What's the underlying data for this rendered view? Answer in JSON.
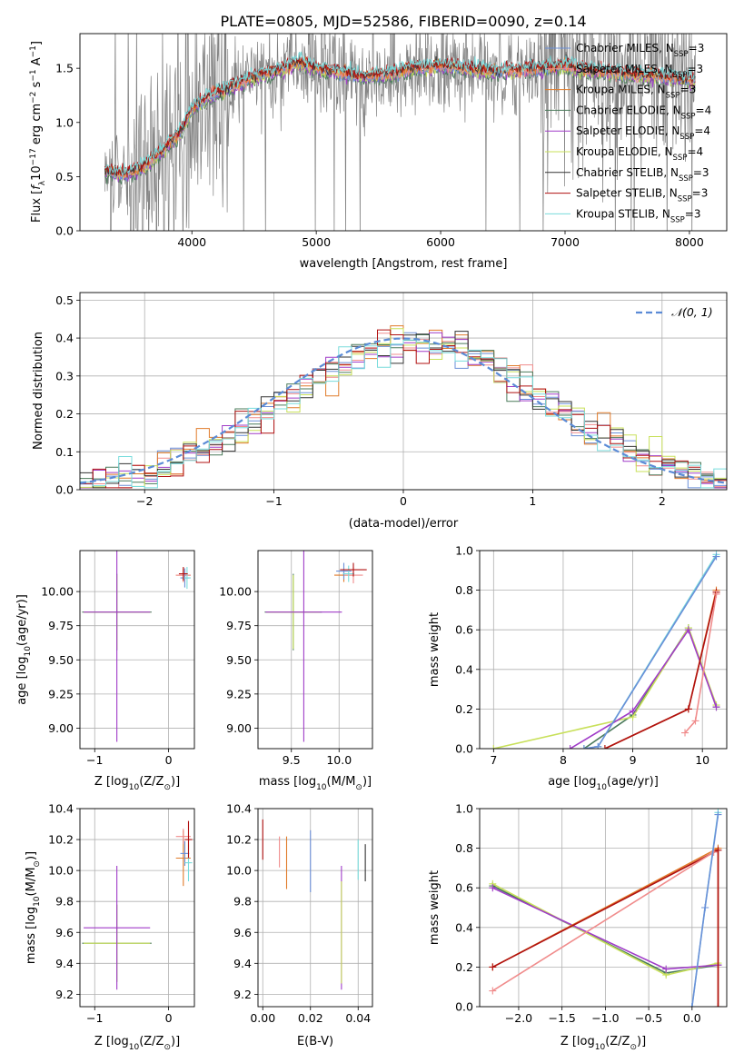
{
  "figure_title": "PLATE=0805, MJD=52586, FIBERID=0090, z=0.14",
  "colors": {
    "chabrier_miles": "#6a8fd8",
    "salpeter_miles": "#f08c8c",
    "kroupa_miles": "#e07b2a",
    "chabrier_elodie": "#4a7a5a",
    "salpeter_elodie": "#a03cc8",
    "kroupa_elodie": "#c8e05a",
    "chabrier_stelib": "#333333",
    "salpeter_stelib": "#b01010",
    "kroupa_stelib": "#78dcdc",
    "data": "#808080",
    "normal_curve": "#5b8bd6"
  },
  "chart_data": [
    {
      "type": "line",
      "id": "spectrum",
      "xlabel": "wavelength [Angstrom, rest frame]",
      "ylabel_parts": [
        "Flux [",
        "f",
        "λ",
        "10",
        "−17",
        " erg cm",
        "−2",
        " s",
        "−1",
        " A",
        "−1",
        "]"
      ],
      "xlim": [
        3100,
        8300
      ],
      "ylim": [
        0,
        1.82
      ],
      "xticks": [
        4000,
        5000,
        6000,
        7000,
        8000
      ],
      "yticks": [
        0.0,
        0.5,
        1.0,
        1.5
      ],
      "legend_placement": "top-right",
      "legend": [
        {
          "main": "Chabrier MILES, N",
          "sub": "SSP",
          "tail": "=3",
          "color_key": "chabrier_miles"
        },
        {
          "main": "Salpeter MILES, N",
          "sub": "SSP",
          "tail": "=3",
          "color_key": "salpeter_miles"
        },
        {
          "main": "Kroupa MILES, N",
          "sub": "SSP",
          "tail": "=3",
          "color_key": "kroupa_miles"
        },
        {
          "main": "Chabrier ELODIE, N",
          "sub": "SSP",
          "tail": "=4",
          "color_key": "chabrier_elodie"
        },
        {
          "main": "Salpeter ELODIE, N",
          "sub": "SSP",
          "tail": "=4",
          "color_key": "salpeter_elodie"
        },
        {
          "main": "Kroupa ELODIE, N",
          "sub": "SSP",
          "tail": "=4",
          "color_key": "kroupa_elodie"
        },
        {
          "main": "Chabrier STELIB, N",
          "sub": "SSP",
          "tail": "=3",
          "color_key": "chabrier_stelib"
        },
        {
          "main": "Salpeter STELIB, N",
          "sub": "SSP",
          "tail": "=3",
          "color_key": "salpeter_stelib"
        },
        {
          "main": "Kroupa STELIB, N",
          "sub": "SSP",
          "tail": "=3",
          "color_key": "kroupa_stelib"
        }
      ],
      "continuum": {
        "x": [
          3300,
          3450,
          3600,
          3750,
          3900,
          4000,
          4150,
          4300,
          4500,
          4700,
          4850,
          5000,
          5200,
          5400,
          5600,
          5800,
          6000,
          6200,
          6400,
          6600,
          6800,
          7000,
          7200,
          7400,
          7600,
          7800,
          8050
        ],
        "y": [
          0.55,
          0.52,
          0.58,
          0.72,
          0.9,
          1.12,
          1.25,
          1.32,
          1.42,
          1.48,
          1.55,
          1.5,
          1.46,
          1.42,
          1.45,
          1.5,
          1.52,
          1.5,
          1.47,
          1.48,
          1.5,
          1.52,
          1.48,
          1.46,
          1.44,
          1.42,
          1.38
        ]
      }
    },
    {
      "type": "bar",
      "id": "residual_hist",
      "xlabel": "(data-model)/error",
      "ylabel": "Normed distribution",
      "xlim": [
        -2.5,
        2.5
      ],
      "ylim": [
        0,
        0.52
      ],
      "xticks": [
        -2,
        -1,
        0,
        1,
        2
      ],
      "yticks": [
        0.0,
        0.1,
        0.2,
        0.3,
        0.4,
        0.5
      ],
      "grid": true,
      "legend_placement": "top-right",
      "curve_label": "𝒩(0, 1)",
      "bin_width": 0.1,
      "bin_start": -2.5
    },
    {
      "type": "scatter",
      "id": "age_vs_z",
      "xlabel_parts": [
        "Z [log",
        "10",
        "(Z/Z",
        "⊙",
        ")]"
      ],
      "ylabel_parts": [
        "age  [log",
        "10",
        "(age/yr)]"
      ],
      "xlim": [
        -1.2,
        0.35
      ],
      "ylim": [
        8.85,
        10.3
      ],
      "xticks": [
        -1,
        0
      ],
      "yticks": [
        9.0,
        9.25,
        9.5,
        9.75,
        10.0
      ],
      "grid": true,
      "points": [
        {
          "x": -0.7,
          "y": 9.85,
          "xerr": 0.47,
          "yerr": 0.28,
          "color_key": "chabrier_elodie"
        },
        {
          "x": -0.7,
          "y": 9.85,
          "xerr": 0.45,
          "yerr": 0.27,
          "color_key": "kroupa_elodie"
        },
        {
          "x": -0.7,
          "y": 9.85,
          "xerr": 0.45,
          "yerr": 0.95,
          "color_key": "salpeter_elodie"
        },
        {
          "x": 0.2,
          "y": 10.12,
          "xerr": 0.1,
          "yerr": 0.05,
          "color_key": "kroupa_miles"
        },
        {
          "x": 0.2,
          "y": 10.12,
          "xerr": 0.1,
          "yerr": 0.05,
          "color_key": "salpeter_miles"
        },
        {
          "x": 0.22,
          "y": 10.1,
          "xerr": 0.06,
          "yerr": 0.07,
          "color_key": "chabrier_miles"
        },
        {
          "x": 0.25,
          "y": 10.1,
          "xerr": 0.05,
          "yerr": 0.08,
          "color_key": "kroupa_stelib"
        },
        {
          "x": 0.2,
          "y": 10.13,
          "xerr": 0.06,
          "yerr": 0.05,
          "color_key": "salpeter_stelib"
        }
      ]
    },
    {
      "type": "scatter",
      "id": "age_vs_mass",
      "xlabel_parts": [
        "mass [log",
        "10",
        "(M/M",
        "⊙",
        ")]"
      ],
      "xlim": [
        9.15,
        10.35
      ],
      "ylim": [
        8.85,
        10.3
      ],
      "xticks": [
        9.5,
        10.0
      ],
      "yticks": [
        9.0,
        9.25,
        9.5,
        9.75,
        10.0
      ],
      "grid": true,
      "points": [
        {
          "x": 9.52,
          "y": 9.85,
          "xerr": 0.3,
          "yerr": 0.28,
          "color_key": "chabrier_elodie"
        },
        {
          "x": 9.52,
          "y": 9.85,
          "xerr": 0.28,
          "yerr": 0.27,
          "color_key": "kroupa_elodie"
        },
        {
          "x": 9.63,
          "y": 9.85,
          "xerr": 0.4,
          "yerr": 0.95,
          "color_key": "salpeter_elodie"
        },
        {
          "x": 10.05,
          "y": 10.12,
          "xerr": 0.1,
          "yerr": 0.05,
          "color_key": "kroupa_miles"
        },
        {
          "x": 10.15,
          "y": 10.12,
          "xerr": 0.1,
          "yerr": 0.06,
          "color_key": "salpeter_miles"
        },
        {
          "x": 10.05,
          "y": 10.15,
          "xerr": 0.08,
          "yerr": 0.06,
          "color_key": "chabrier_miles"
        },
        {
          "x": 10.1,
          "y": 10.13,
          "xerr": 0.06,
          "yerr": 0.06,
          "color_key": "kroupa_stelib"
        },
        {
          "x": 10.15,
          "y": 10.16,
          "xerr": 0.14,
          "yerr": 0.05,
          "color_key": "salpeter_stelib"
        }
      ]
    },
    {
      "type": "line",
      "id": "weight_vs_age",
      "xlabel_parts": [
        "age  [log",
        "10",
        "(age/yr)]"
      ],
      "ylabel": "mass weight",
      "xlim": [
        6.8,
        10.35
      ],
      "ylim": [
        0,
        1.0
      ],
      "xticks": [
        7,
        8,
        9,
        10
      ],
      "yticks": [
        0.0,
        0.2,
        0.4,
        0.6,
        0.8,
        1.0
      ],
      "grid": true,
      "series": [
        {
          "x": [
            8.3,
            9.0,
            9.8,
            10.2
          ],
          "y": [
            0.0,
            0.17,
            0.61,
            0.21
          ],
          "color_key": "chabrier_elodie"
        },
        {
          "x": [
            7.0,
            9.0,
            9.8,
            10.2
          ],
          "y": [
            0.0,
            0.16,
            0.61,
            0.22
          ],
          "color_key": "kroupa_elodie"
        },
        {
          "x": [
            8.1,
            9.0,
            9.8,
            10.2
          ],
          "y": [
            0.0,
            0.19,
            0.6,
            0.21
          ],
          "color_key": "salpeter_elodie"
        },
        {
          "x": [
            8.3,
            8.5,
            10.2
          ],
          "y": [
            0.0,
            0.01,
            0.98
          ],
          "color_key": "kroupa_stelib"
        },
        {
          "x": [
            8.3,
            8.5,
            10.2
          ],
          "y": [
            0.0,
            0.01,
            0.97
          ],
          "color_key": "chabrier_miles"
        },
        {
          "x": [
            8.6,
            9.8,
            10.2
          ],
          "y": [
            0.0,
            0.2,
            0.8
          ],
          "color_key": "kroupa_miles"
        },
        {
          "x": [
            8.6,
            9.8,
            10.2
          ],
          "y": [
            0.0,
            0.2,
            0.79
          ],
          "color_key": "salpeter_stelib"
        },
        {
          "x": [
            9.75,
            9.9,
            10.2
          ],
          "y": [
            0.08,
            0.14,
            0.78
          ],
          "color_key": "salpeter_miles"
        }
      ]
    },
    {
      "type": "scatter",
      "id": "mass_vs_z",
      "xlabel_parts": [
        "Z [log",
        "10",
        "(Z/Z",
        "⊙",
        ")]"
      ],
      "ylabel_parts": [
        "mass [log",
        "10",
        "(M/M",
        "⊙",
        ")]"
      ],
      "xlim": [
        -1.2,
        0.35
      ],
      "ylim": [
        9.12,
        10.4
      ],
      "xticks": [
        -1,
        0
      ],
      "yticks": [
        9.2,
        9.4,
        9.6,
        9.8,
        10.0,
        10.2,
        10.4
      ],
      "grid": true,
      "points": [
        {
          "x": -0.7,
          "y": 9.53,
          "xerr": 0.47,
          "yerr": 0.25,
          "color_key": "chabrier_elodie"
        },
        {
          "x": -0.7,
          "y": 9.53,
          "xerr": 0.45,
          "yerr": 0.25,
          "color_key": "kroupa_elodie"
        },
        {
          "x": -0.7,
          "y": 9.63,
          "xerr": 0.45,
          "yerr": 0.4,
          "color_key": "salpeter_elodie"
        },
        {
          "x": 0.2,
          "y": 10.08,
          "xerr": 0.1,
          "yerr": 0.18,
          "color_key": "kroupa_miles"
        },
        {
          "x": 0.2,
          "y": 10.22,
          "xerr": 0.1,
          "yerr": 0.05,
          "color_key": "salpeter_miles"
        },
        {
          "x": 0.22,
          "y": 10.11,
          "xerr": 0.06,
          "yerr": 0.08,
          "color_key": "chabrier_miles"
        },
        {
          "x": 0.27,
          "y": 10.05,
          "xerr": 0.05,
          "yerr": 0.12,
          "color_key": "kroupa_stelib"
        },
        {
          "x": 0.27,
          "y": 10.2,
          "xerr": 0.05,
          "yerr": 0.12,
          "color_key": "salpeter_stelib"
        }
      ]
    },
    {
      "type": "scatter",
      "id": "mass_vs_ebv",
      "xlabel": "E(B-V)",
      "xlim": [
        -0.002,
        0.046
      ],
      "ylim": [
        9.12,
        10.4
      ],
      "xticks": [
        0.0,
        0.02,
        0.04
      ],
      "yticks": [
        9.2,
        9.4,
        9.6,
        9.8,
        10.0,
        10.2,
        10.4
      ],
      "grid": true,
      "points": [
        {
          "x": 0.0,
          "y": 10.2,
          "yerr": 0.13,
          "color_key": "salpeter_stelib"
        },
        {
          "x": 0.007,
          "y": 10.12,
          "yerr": 0.1,
          "color_key": "salpeter_miles"
        },
        {
          "x": 0.01,
          "y": 10.05,
          "yerr": 0.17,
          "color_key": "kroupa_miles"
        },
        {
          "x": 0.02,
          "y": 10.06,
          "yerr": 0.2,
          "color_key": "chabrier_miles"
        },
        {
          "x": 0.033,
          "y": 9.63,
          "yerr": 0.4,
          "color_key": "salpeter_elodie"
        },
        {
          "x": 0.033,
          "y": 9.6,
          "yerr": 0.33,
          "color_key": "kroupa_elodie"
        },
        {
          "x": 0.04,
          "y": 10.07,
          "yerr": 0.13,
          "color_key": "kroupa_stelib"
        },
        {
          "x": 0.043,
          "y": 10.05,
          "yerr": 0.12,
          "color_key": "chabrier_stelib"
        }
      ]
    },
    {
      "type": "line",
      "id": "weight_vs_z",
      "xlabel_parts": [
        "Z [log",
        "10",
        "(Z/Z",
        "⊙",
        ")]"
      ],
      "ylabel": "mass weight",
      "xlim": [
        -2.45,
        0.4
      ],
      "ylim": [
        0,
        1.0
      ],
      "xticks": [
        -2.0,
        -1.5,
        -1.0,
        -0.5,
        0.0
      ],
      "yticks": [
        0.0,
        0.2,
        0.4,
        0.6,
        0.8,
        1.0
      ],
      "grid": true,
      "series": [
        {
          "x": [
            -2.3,
            -0.3,
            0.3
          ],
          "y": [
            0.61,
            0.17,
            0.21
          ],
          "color_key": "chabrier_elodie"
        },
        {
          "x": [
            -2.3,
            -0.3,
            0.3
          ],
          "y": [
            0.62,
            0.16,
            0.22
          ],
          "color_key": "kroupa_elodie"
        },
        {
          "x": [
            -2.3,
            -0.3,
            0.3
          ],
          "y": [
            0.6,
            0.19,
            0.21
          ],
          "color_key": "salpeter_elodie"
        },
        {
          "x": [
            -2.3,
            0.3,
            0.3
          ],
          "y": [
            0.2,
            0.8,
            0.0
          ],
          "color_key": "kroupa_miles"
        },
        {
          "x": [
            -2.3,
            0.3,
            0.3
          ],
          "y": [
            0.2,
            0.79,
            0.0
          ],
          "color_key": "salpeter_stelib"
        },
        {
          "x": [
            -2.3,
            0.25
          ],
          "y": [
            0.08,
            0.78
          ],
          "color_key": "salpeter_miles"
        },
        {
          "x": [
            0.0,
            0.15,
            0.3
          ],
          "y": [
            0.0,
            0.5,
            0.98
          ],
          "color_key": "kroupa_stelib"
        },
        {
          "x": [
            0.0,
            0.15,
            0.3
          ],
          "y": [
            0.0,
            0.5,
            0.97
          ],
          "color_key": "chabrier_miles"
        }
      ]
    }
  ]
}
